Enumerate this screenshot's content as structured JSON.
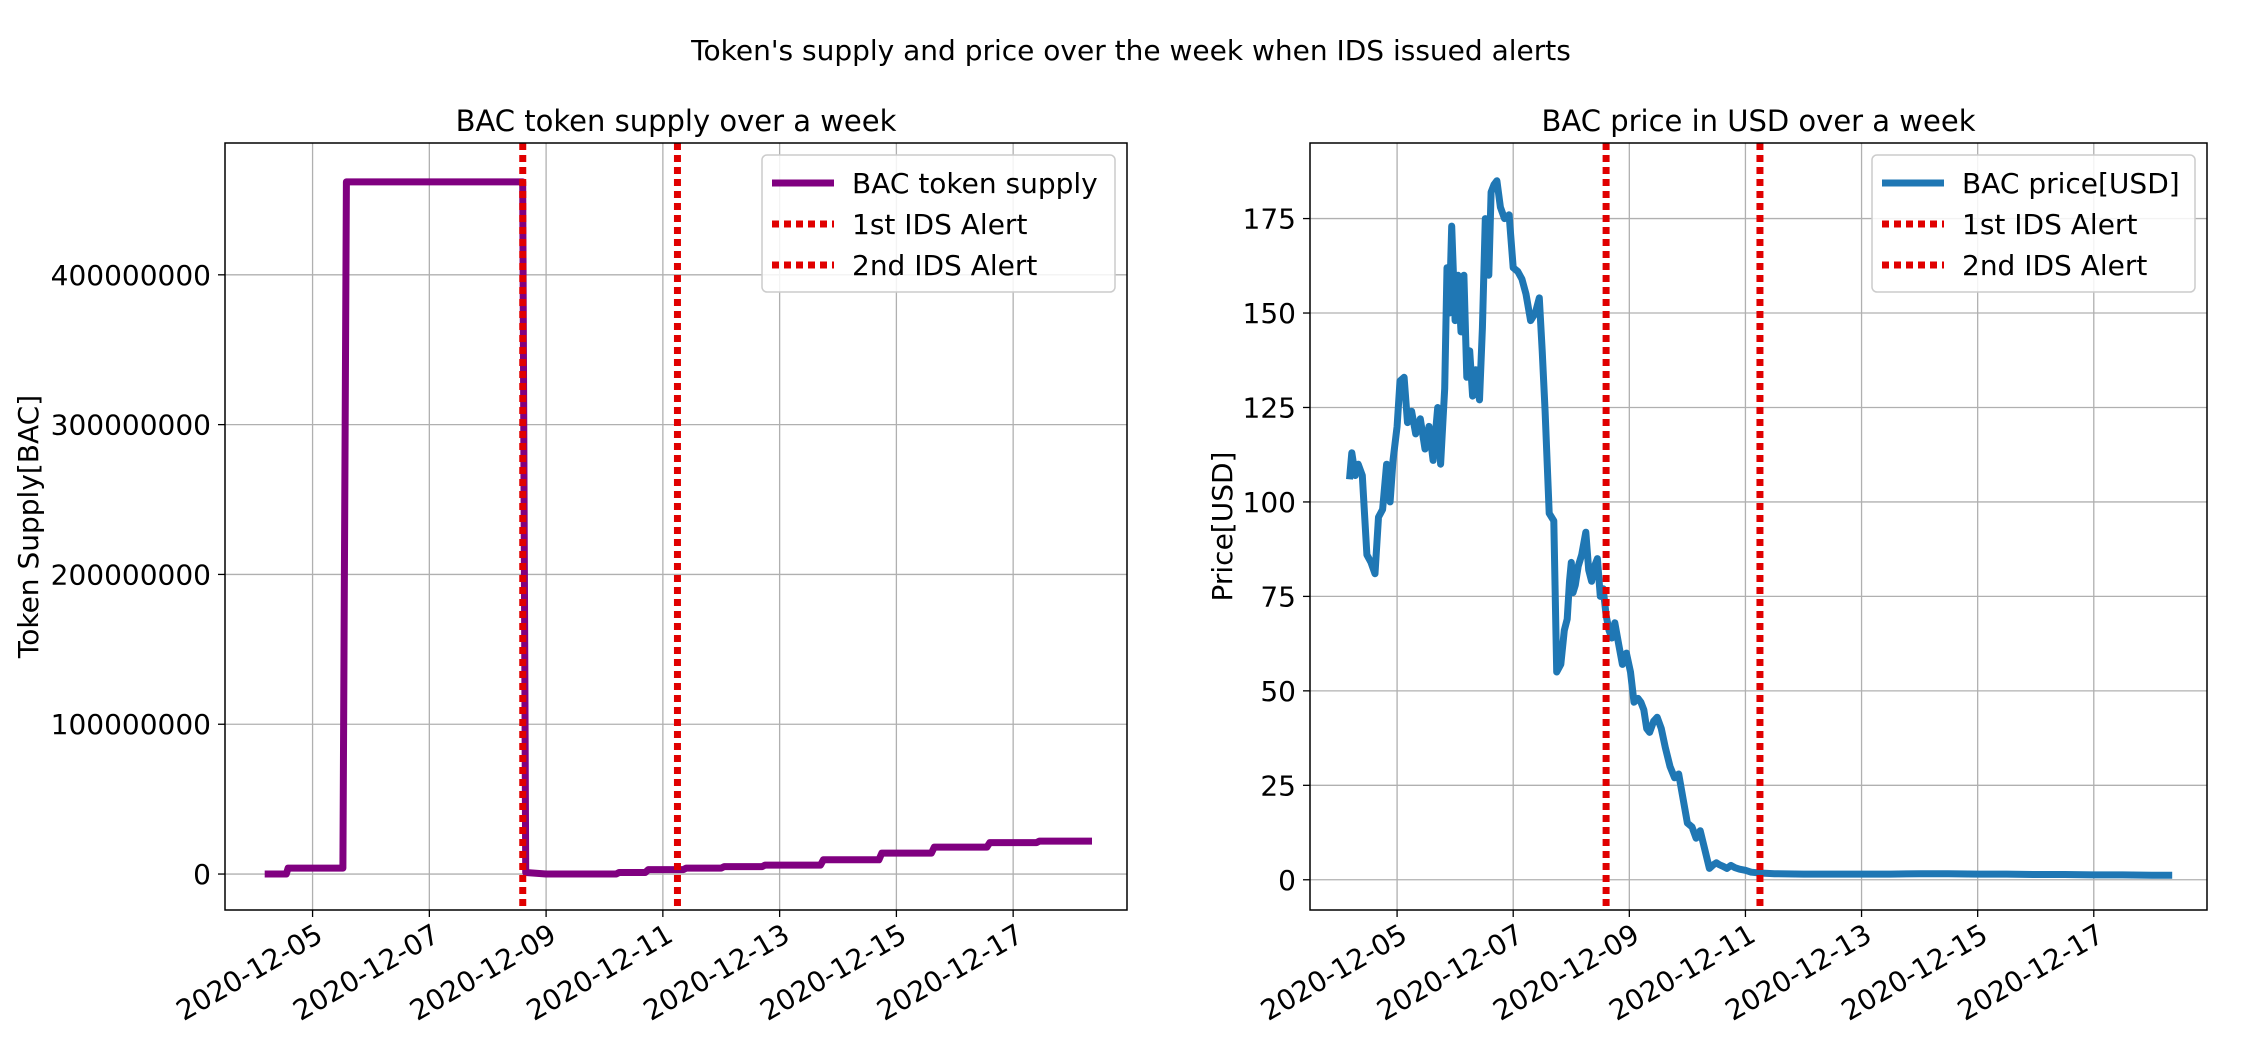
{
  "suptitle": "Token's supply and price over the week when IDS issued alerts",
  "chart_data": [
    {
      "type": "line",
      "title": "BAC token supply over a week",
      "xlabel": "",
      "ylabel": "Token Supply[BAC]",
      "xlim": [
        3.5,
        18.95
      ],
      "ylim": [
        -24000000,
        488000000
      ],
      "x_tick_values": [
        5,
        7,
        9,
        11,
        13,
        15,
        17
      ],
      "x_tick_labels": [
        "2020-12-05",
        "2020-12-07",
        "2020-12-09",
        "2020-12-11",
        "2020-12-13",
        "2020-12-15",
        "2020-12-17"
      ],
      "y_tick_values": [
        0,
        100000000,
        200000000,
        300000000,
        400000000
      ],
      "y_tick_labels": [
        "0",
        "100000000",
        "200000000",
        "300000000",
        "400000000"
      ],
      "grid": true,
      "legend_position": "top-right",
      "series": [
        {
          "name": "BAC token supply",
          "color": "#800080",
          "style": "solid",
          "x": [
            4.18,
            4.55,
            4.58,
            5.05,
            5.52,
            5.58,
            8.6,
            8.65,
            9.0,
            10.2,
            10.25,
            10.7,
            10.75,
            11.35,
            11.4,
            12.0,
            12.05,
            12.7,
            12.75,
            13.7,
            13.75,
            14.7,
            14.75,
            15.6,
            15.65,
            16.55,
            16.6,
            17.4,
            17.45,
            18.35
          ],
          "y": [
            0,
            0,
            4000000,
            4000000,
            4000000,
            462000000,
            462000000,
            1000000,
            0,
            0,
            1000000,
            1000000,
            3000000,
            3000000,
            4000000,
            4000000,
            5000000,
            5000000,
            6000000,
            6000000,
            9500000,
            9500000,
            14000000,
            14000000,
            18000000,
            18000000,
            21000000,
            21000000,
            22000000,
            22000000
          ]
        }
      ],
      "vlines": [
        {
          "name": "1st IDS Alert",
          "x": 8.6,
          "color": "#e00000",
          "style": "dotted"
        },
        {
          "name": "2nd IDS Alert",
          "x": 11.25,
          "color": "#e00000",
          "style": "dotted"
        }
      ]
    },
    {
      "type": "line",
      "title": "BAC price in USD over a week",
      "xlabel": "",
      "ylabel": "Price[USD]",
      "xlim": [
        3.5,
        18.95
      ],
      "ylim": [
        -8,
        195
      ],
      "x_tick_values": [
        5,
        7,
        9,
        11,
        13,
        15,
        17
      ],
      "x_tick_labels": [
        "2020-12-05",
        "2020-12-07",
        "2020-12-09",
        "2020-12-11",
        "2020-12-13",
        "2020-12-15",
        "2020-12-17"
      ],
      "y_tick_values": [
        0,
        25,
        50,
        75,
        100,
        125,
        150,
        175
      ],
      "y_tick_labels": [
        "0",
        "25",
        "50",
        "75",
        "100",
        "125",
        "150",
        "175"
      ],
      "grid": true,
      "legend_position": "top-right",
      "series": [
        {
          "name": "BAC price[USD]",
          "color": "#1f77b4",
          "style": "solid",
          "x": [
            4.18,
            4.22,
            4.28,
            4.33,
            4.4,
            4.48,
            4.55,
            4.62,
            4.68,
            4.75,
            4.82,
            4.88,
            4.93,
            5.0,
            5.05,
            5.12,
            5.18,
            5.25,
            5.32,
            5.4,
            5.48,
            5.55,
            5.62,
            5.7,
            5.75,
            5.82,
            5.86,
            5.9,
            5.94,
            6.0,
            6.05,
            6.1,
            6.15,
            6.2,
            6.25,
            6.3,
            6.35,
            6.42,
            6.47,
            6.52,
            6.58,
            6.62,
            6.67,
            6.72,
            6.78,
            6.85,
            6.93,
            7.0,
            7.08,
            7.15,
            7.22,
            7.3,
            7.38,
            7.45,
            7.5,
            7.55,
            7.62,
            7.7,
            7.75,
            7.82,
            7.88,
            7.93,
            7.97,
            8.0,
            8.03,
            8.07,
            8.12,
            8.18,
            8.25,
            8.3,
            8.35,
            8.4,
            8.45,
            8.5,
            8.55,
            8.6,
            8.65,
            8.7,
            8.75,
            8.82,
            8.88,
            8.95,
            9.02,
            9.08,
            9.15,
            9.2,
            9.25,
            9.3,
            9.35,
            9.42,
            9.48,
            9.55,
            9.62,
            9.7,
            9.78,
            9.85,
            9.92,
            10.0,
            10.08,
            10.15,
            10.22,
            10.3,
            10.38,
            10.45,
            10.5,
            10.55,
            10.62,
            10.68,
            10.75,
            10.82,
            10.9,
            11.0,
            11.1,
            11.25,
            11.5,
            12.0,
            12.5,
            13.0,
            13.5,
            14.0,
            14.5,
            15.0,
            15.5,
            16.0,
            16.5,
            17.0,
            17.5,
            18.0,
            18.35
          ],
          "y": [
            106,
            113,
            107,
            110,
            107,
            86,
            84,
            81,
            96,
            98,
            110,
            100,
            111,
            120,
            132,
            133,
            121,
            124,
            118,
            122,
            114,
            120,
            111,
            125,
            110,
            130,
            162,
            150,
            173,
            148,
            160,
            145,
            160,
            133,
            140,
            128,
            135,
            127,
            146,
            175,
            160,
            182,
            184,
            185,
            178,
            175,
            176,
            162,
            161,
            159,
            155,
            148,
            150,
            154,
            140,
            124,
            97,
            95,
            55,
            57,
            66,
            69,
            79,
            84,
            76,
            78,
            83,
            86,
            92,
            82,
            79,
            83,
            85,
            75,
            77,
            70,
            66,
            64,
            68,
            62,
            57,
            60,
            55,
            47,
            48,
            47,
            45,
            40,
            39,
            42,
            43,
            40,
            35,
            30,
            27,
            28,
            22,
            15,
            14,
            11,
            13,
            8,
            3,
            4,
            4.5,
            4,
            3.5,
            3,
            3.8,
            3.2,
            2.8,
            2.5,
            2.0,
            1.8,
            1.6,
            1.5,
            1.5,
            1.5,
            1.5,
            1.6,
            1.6,
            1.5,
            1.5,
            1.4,
            1.4,
            1.3,
            1.3,
            1.2,
            1.2
          ]
        }
      ],
      "vlines": [
        {
          "name": "1st IDS Alert",
          "x": 8.6,
          "color": "#e00000",
          "style": "dotted"
        },
        {
          "name": "2nd IDS Alert",
          "x": 11.25,
          "color": "#e00000",
          "style": "dotted"
        }
      ]
    }
  ]
}
